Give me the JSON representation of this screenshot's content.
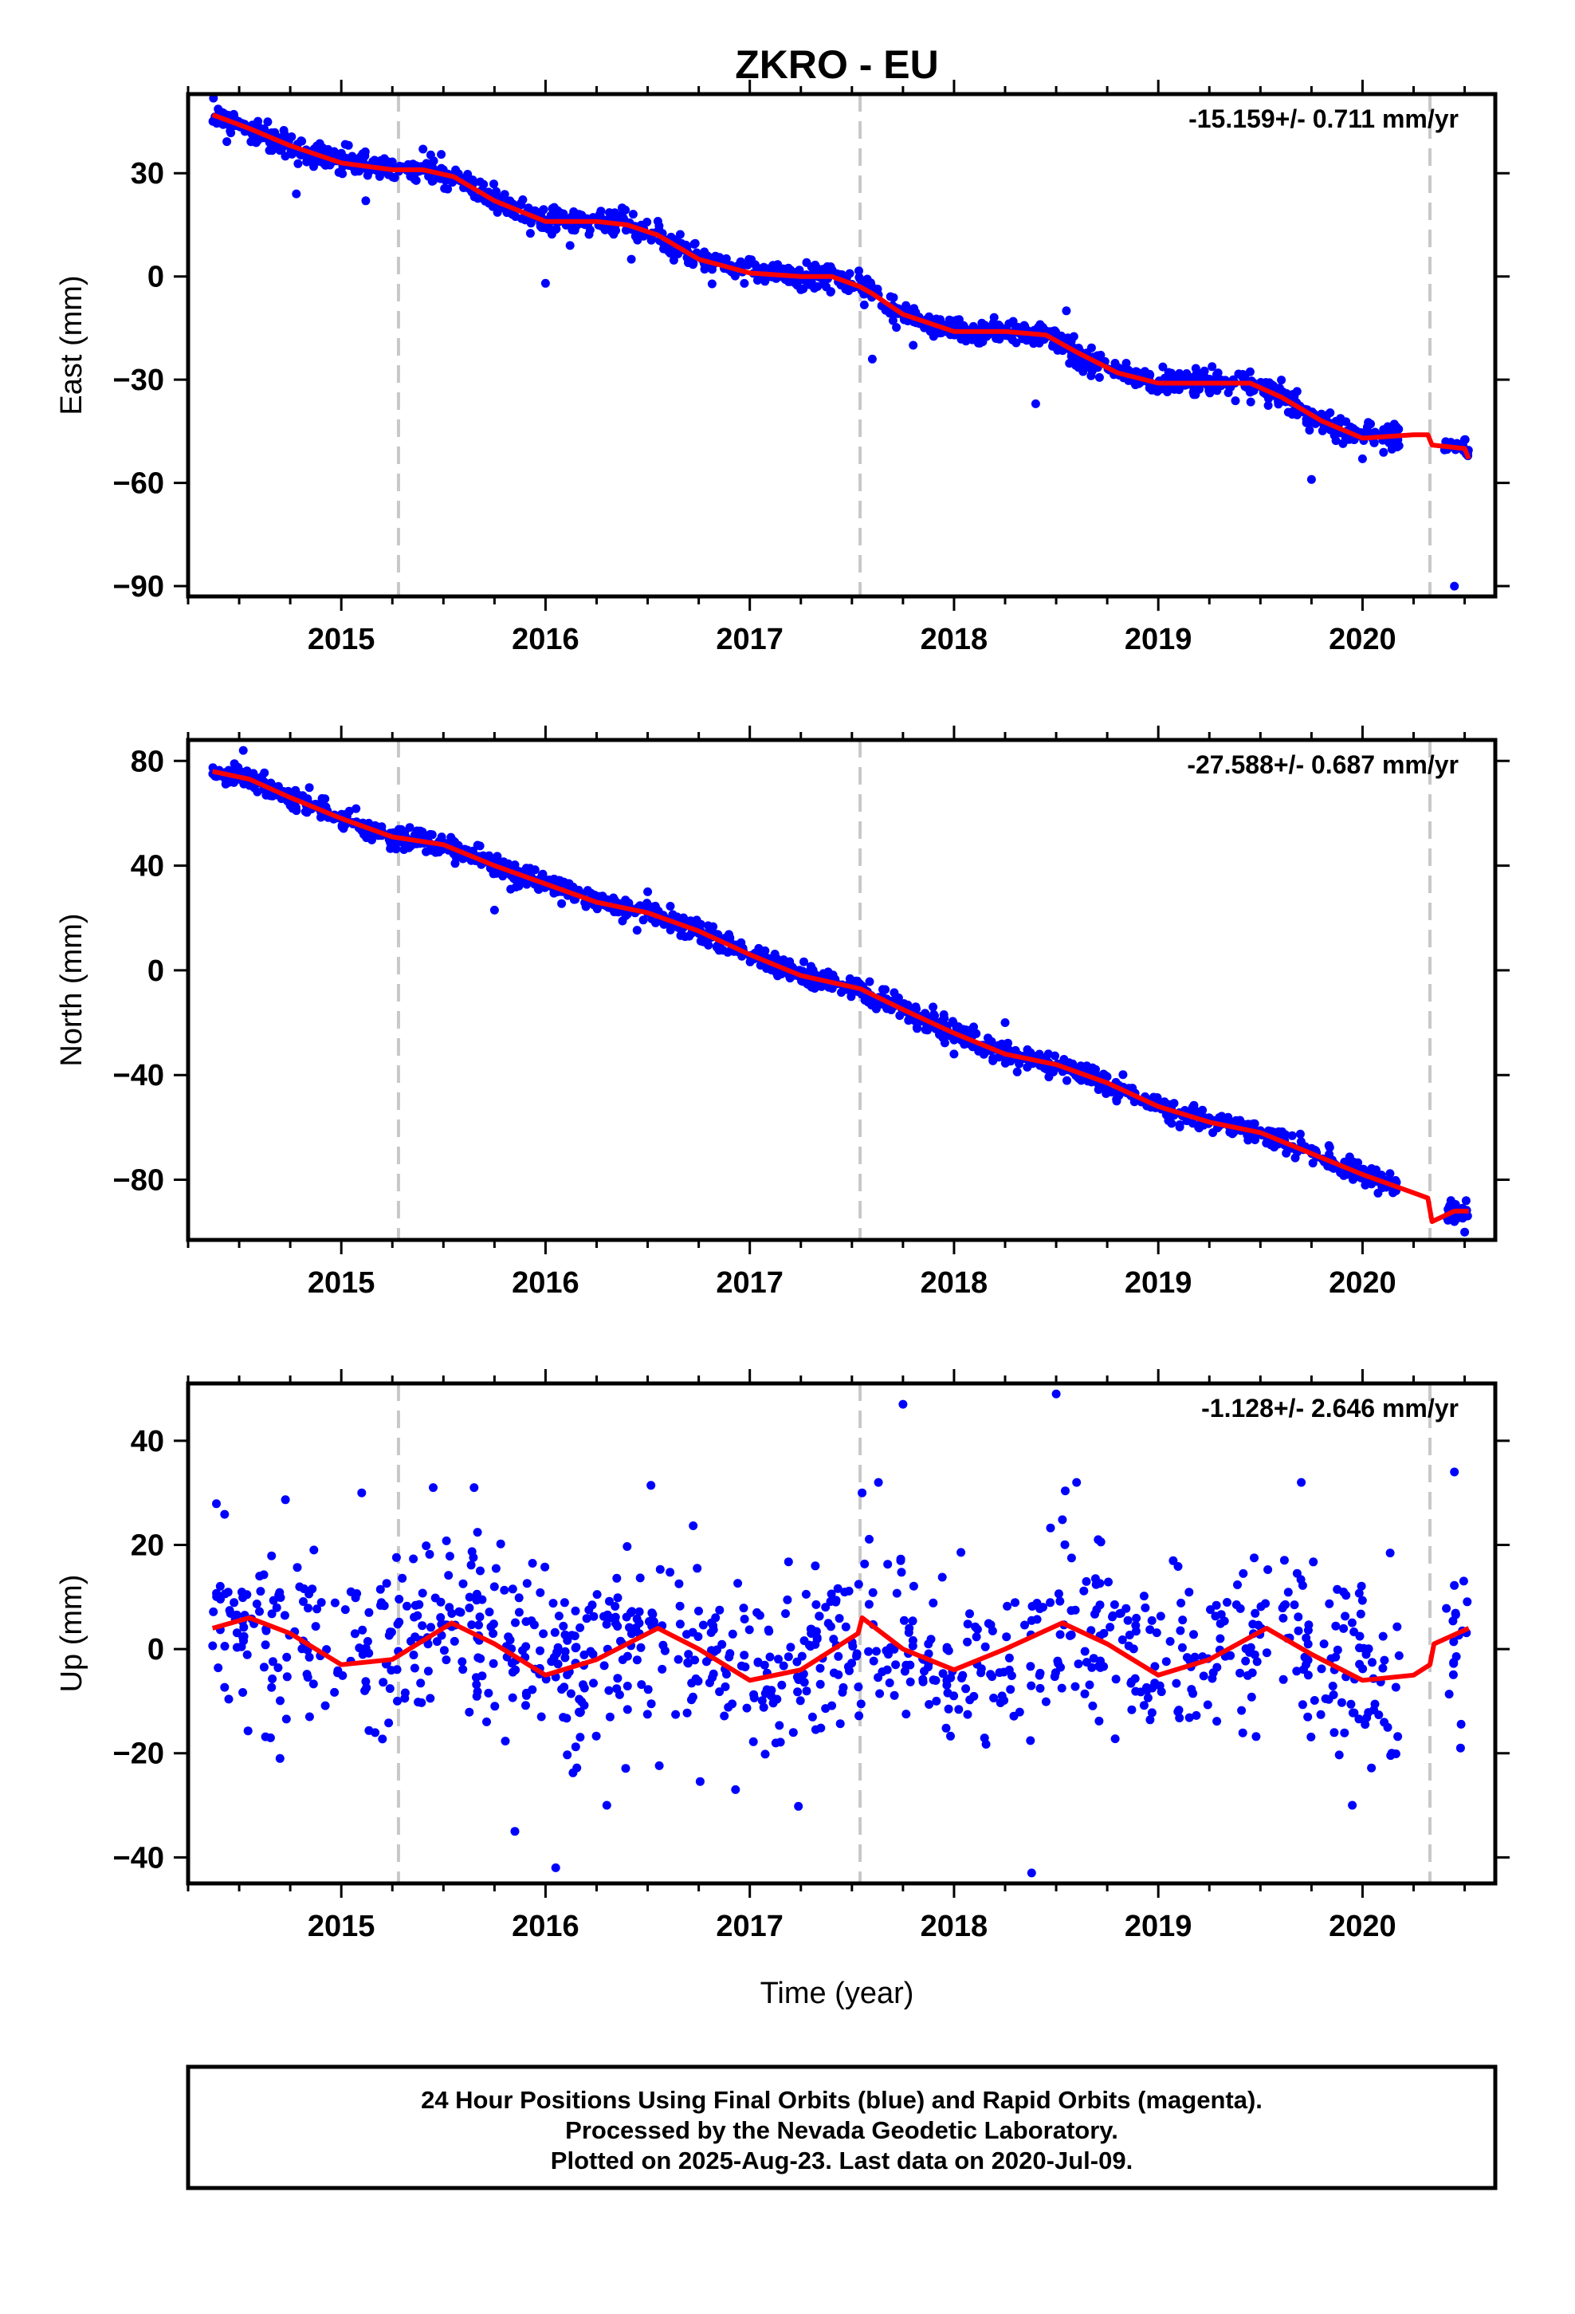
{
  "title": "ZKRO - EU",
  "x_axis_label": "Time (year)",
  "footer": {
    "line1": "24 Hour Positions Using Final Orbits (blue) and Rapid Orbits (magenta).",
    "line2": "Processed by the Nevada Geodetic Laboratory.",
    "line3": "Plotted on 2025-Aug-23. Last data on 2020-Jul-09."
  },
  "colors": {
    "points": "#0000ff",
    "fit": "#ff0000",
    "event_lines": "#c8c8c8"
  },
  "chart_data": [
    {
      "type": "scatter",
      "name": "east",
      "ylabel": "East (mm)",
      "rate_text": "-15.159+/- 0.711 mm/yr",
      "xlim": [
        2014.25,
        2020.65
      ],
      "ylim": [
        -93,
        53
      ],
      "yticks": [
        30,
        0,
        -30,
        -60,
        -90
      ],
      "ytick_labels": [
        "30",
        "0",
        "−30",
        "−60",
        "−90"
      ],
      "xticks": [
        2015,
        2016,
        2017,
        2018,
        2019,
        2020
      ],
      "event_lines": [
        2015.28,
        2017.54,
        2020.33
      ],
      "rate": -15.159,
      "offset": 46,
      "noise": 1.8,
      "fit_x": [
        2014.37,
        2014.55,
        2014.75,
        2015.0,
        2015.25,
        2015.4,
        2015.55,
        2015.75,
        2016.0,
        2016.25,
        2016.4,
        2016.55,
        2016.75,
        2017.0,
        2017.25,
        2017.4,
        2017.54,
        2017.6,
        2017.75,
        2018.0,
        2018.25,
        2018.45,
        2018.6,
        2018.8,
        2019.0,
        2019.25,
        2019.45,
        2019.6,
        2019.8,
        2020.0,
        2020.25,
        2020.32,
        2020.34,
        2020.5,
        2020.52
      ],
      "fit_y": [
        47,
        43,
        38,
        33,
        31,
        31,
        29,
        22,
        16,
        16,
        15,
        12,
        5,
        1,
        0,
        0,
        -3,
        -5,
        -11,
        -16,
        -16,
        -17,
        -22,
        -28,
        -31,
        -31,
        -31,
        -35,
        -42,
        -47,
        -46,
        -46,
        -49,
        -50,
        -53
      ],
      "outliers": [
        [
          2014.78,
          24
        ],
        [
          2015.12,
          22
        ],
        [
          2015.4,
          37
        ],
        [
          2016.0,
          -2
        ],
        [
          2016.12,
          9
        ],
        [
          2016.42,
          5
        ],
        [
          2017.6,
          -24
        ],
        [
          2017.8,
          -20
        ],
        [
          2018.4,
          -37
        ],
        [
          2018.55,
          -10
        ],
        [
          2020.45,
          -90
        ],
        [
          2019.75,
          -59
        ],
        [
          2020.0,
          -53
        ]
      ],
      "n_points": 1450
    },
    {
      "type": "scatter",
      "name": "north",
      "ylabel": "North (mm)",
      "rate_text": "-27.588+/- 0.687 mm/yr",
      "xlim": [
        2014.25,
        2020.65
      ],
      "ylim": [
        -103,
        88
      ],
      "yticks": [
        80,
        40,
        0,
        -40,
        -80
      ],
      "ytick_labels": [
        "80",
        "40",
        "0",
        "−40",
        "−80"
      ],
      "xticks": [
        2015,
        2016,
        2017,
        2018,
        2019,
        2020
      ],
      "event_lines": [
        2015.28,
        2017.54,
        2020.33
      ],
      "rate": -27.588,
      "offset": 76,
      "noise": 2.0,
      "fit_x": [
        2014.37,
        2014.55,
        2014.75,
        2015.0,
        2015.25,
        2015.5,
        2015.75,
        2016.0,
        2016.25,
        2016.5,
        2016.75,
        2017.0,
        2017.25,
        2017.54,
        2017.75,
        2018.0,
        2018.25,
        2018.5,
        2018.75,
        2019.0,
        2019.25,
        2019.5,
        2019.75,
        2020.0,
        2020.25,
        2020.32,
        2020.34,
        2020.45,
        2020.52
      ],
      "fit_y": [
        76,
        73,
        66,
        58,
        51,
        48,
        40,
        33,
        26,
        22,
        15,
        6,
        -2,
        -7,
        -15,
        -24,
        -32,
        -36,
        -43,
        -52,
        -58,
        -62,
        -70,
        -78,
        -85,
        -87,
        -96,
        -92,
        -92
      ],
      "outliers": [
        [
          2014.52,
          84
        ],
        [
          2015.75,
          23
        ],
        [
          2016.5,
          30
        ],
        [
          2016.85,
          8
        ],
        [
          2018.0,
          -32
        ],
        [
          2018.25,
          -20
        ],
        [
          2020.5,
          -100
        ],
        [
          2020.45,
          -96
        ]
      ],
      "n_points": 1450
    },
    {
      "type": "scatter",
      "name": "up",
      "ylabel": "Up (mm)",
      "rate_text": "-1.128+/- 2.646 mm/yr",
      "xlim": [
        2014.25,
        2020.65
      ],
      "ylim": [
        -45,
        51
      ],
      "yticks": [
        40,
        20,
        0,
        -20,
        -40
      ],
      "ytick_labels": [
        "40",
        "20",
        "0",
        "−20",
        "−40"
      ],
      "xticks": [
        2015,
        2016,
        2017,
        2018,
        2019,
        2020
      ],
      "event_lines": [
        2015.28,
        2017.54,
        2020.33
      ],
      "rate": -1.128,
      "offset": 1,
      "noise": 8.5,
      "fit_x": [
        2014.37,
        2014.55,
        2014.75,
        2015.0,
        2015.25,
        2015.54,
        2015.75,
        2016.0,
        2016.25,
        2016.55,
        2016.75,
        2017.0,
        2017.25,
        2017.53,
        2017.55,
        2017.75,
        2018.0,
        2018.25,
        2018.53,
        2018.75,
        2019.0,
        2019.25,
        2019.53,
        2019.75,
        2020.0,
        2020.25,
        2020.33,
        2020.35,
        2020.52
      ],
      "fit_y": [
        4,
        6,
        3,
        -3,
        -2,
        5,
        1,
        -5,
        -2,
        4,
        0,
        -6,
        -4,
        3,
        6,
        0,
        -4,
        0,
        5,
        1,
        -5,
        -2,
        4,
        -1,
        -6,
        -5,
        -3,
        1,
        4
      ],
      "outliers": [
        [
          2014.7,
          -21
        ],
        [
          2015.1,
          30
        ],
        [
          2015.45,
          31
        ],
        [
          2015.65,
          31
        ],
        [
          2015.85,
          -35
        ],
        [
          2016.05,
          -42
        ],
        [
          2016.3,
          -30
        ],
        [
          2016.93,
          -27
        ],
        [
          2017.75,
          47
        ],
        [
          2018.38,
          -43
        ],
        [
          2018.5,
          49
        ],
        [
          2018.6,
          32
        ],
        [
          2019.7,
          32
        ],
        [
          2019.95,
          -30
        ],
        [
          2020.45,
          34
        ],
        [
          2020.48,
          -19
        ],
        [
          2017.55,
          30
        ],
        [
          2017.63,
          32
        ]
      ],
      "n_points": 1450
    }
  ]
}
